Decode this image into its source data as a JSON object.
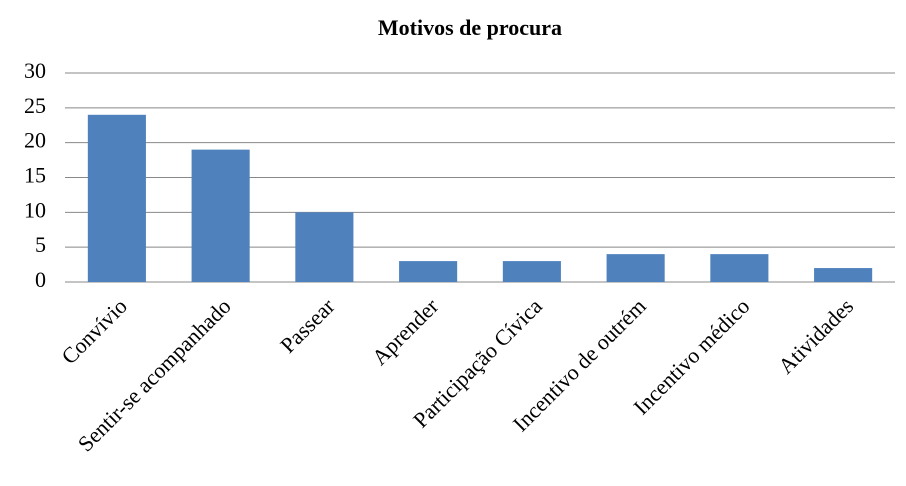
{
  "chart_data": {
    "type": "bar",
    "title": "Motivos de procura",
    "categories": [
      "Convívio",
      "Sentir-se acompanhado",
      "Passear",
      "Aprender",
      "Participação Cívica",
      "Incentivo de outrém",
      "Incentivo médico",
      "Atividades"
    ],
    "values": [
      24,
      19,
      10,
      3,
      3,
      4,
      4,
      2
    ],
    "color": "#4f81bd",
    "ylim": [
      0,
      30
    ],
    "yticks": [
      0,
      5,
      10,
      15,
      20,
      25,
      30
    ],
    "grid": true
  }
}
